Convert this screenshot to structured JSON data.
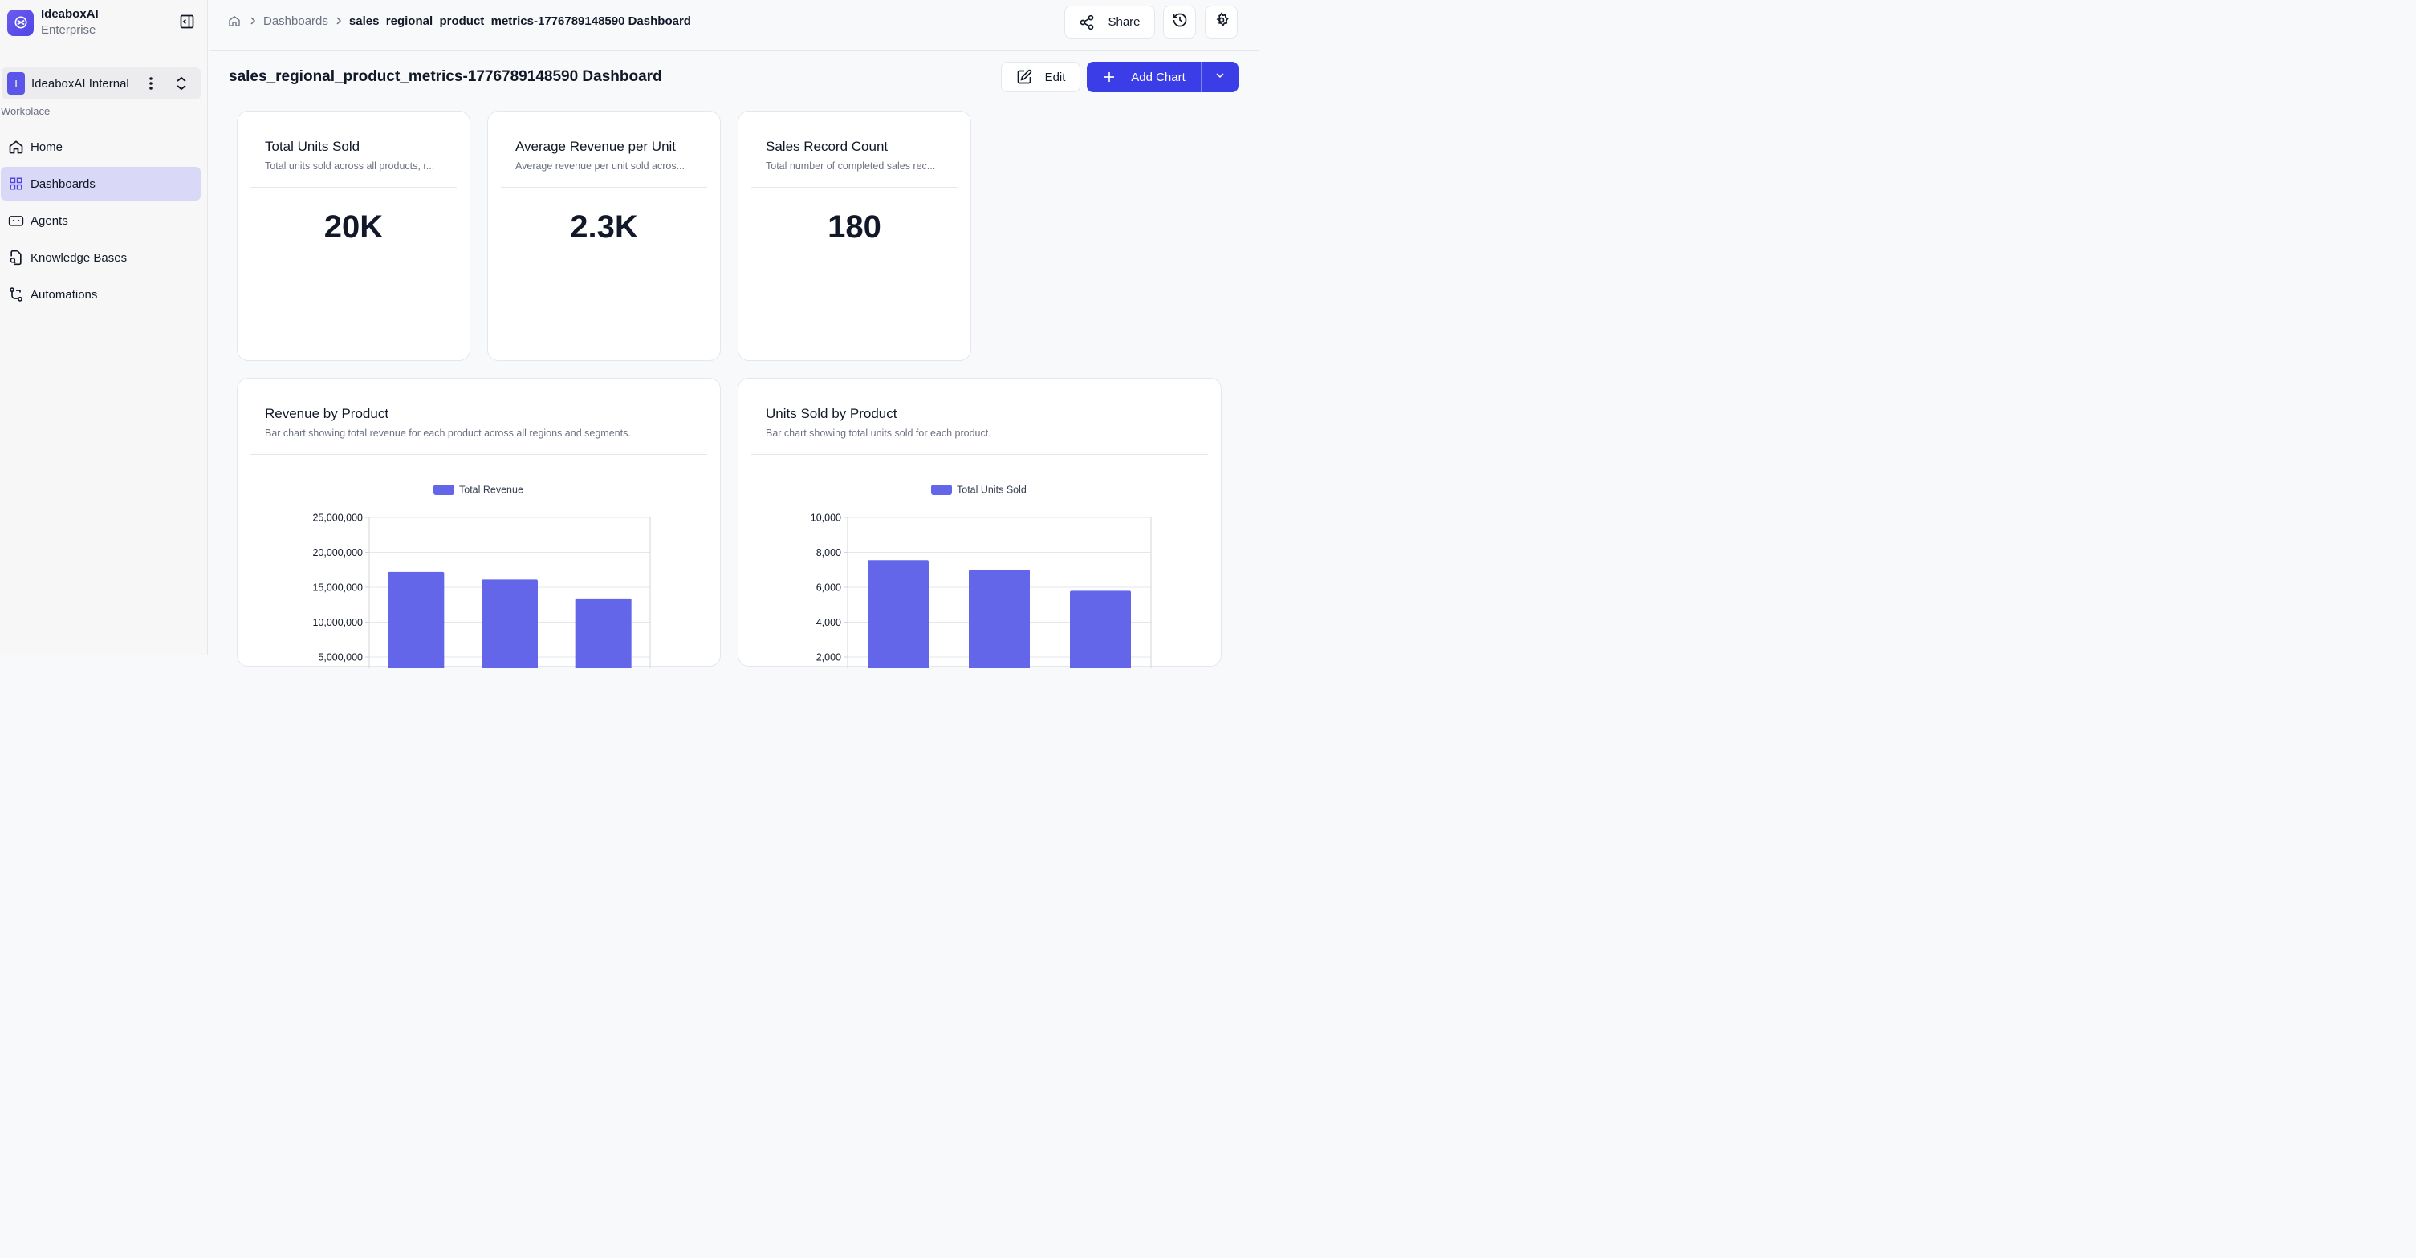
{
  "brand": {
    "name": "IdeaboxAI",
    "tier": "Enterprise"
  },
  "workspace": {
    "initial": "I",
    "name": "IdeaboxAI Internal"
  },
  "sidebar": {
    "section_label": "Workplace",
    "items": [
      {
        "label": "Home",
        "icon": "home-icon"
      },
      {
        "label": "Dashboards",
        "icon": "grid-icon",
        "active": true
      },
      {
        "label": "Agents",
        "icon": "bot-icon"
      },
      {
        "label": "Knowledge Bases",
        "icon": "file-search-icon"
      },
      {
        "label": "Automations",
        "icon": "workflow-icon"
      }
    ]
  },
  "breadcrumb": {
    "parent": "Dashboards",
    "current": "sales_regional_product_metrics-1776789148590 Dashboard"
  },
  "toolbar": {
    "share_label": "Share"
  },
  "page": {
    "title": "sales_regional_product_metrics-1776789148590 Dashboard",
    "edit_label": "Edit",
    "add_chart_label": "Add Chart"
  },
  "kpis": [
    {
      "title": "Total Units Sold",
      "description": "Total units sold across all products, r...",
      "value": "20K"
    },
    {
      "title": "Average Revenue per Unit",
      "description": "Average revenue per unit sold acros...",
      "value": "2.3K"
    },
    {
      "title": "Sales Record Count",
      "description": "Total number of completed sales rec...",
      "value": "180"
    }
  ],
  "charts": [
    {
      "title": "Revenue by Product",
      "description": "Bar chart showing total revenue for each product across all regions and segments."
    },
    {
      "title": "Units Sold by Product",
      "description": "Bar chart showing total units sold for each product."
    }
  ],
  "colors": {
    "accent": "#3b3ee6",
    "bar": "#6366e9",
    "active_nav": "#d9d9f7"
  },
  "chart_data": [
    {
      "type": "bar",
      "title": "Revenue by Product",
      "series": [
        {
          "name": "Total Revenue",
          "values": [
            17200000,
            16100000,
            13400000
          ]
        }
      ],
      "yticks": [
        "25,000,000",
        "20,000,000",
        "15,000,000",
        "10,000,000",
        "5,000,000"
      ],
      "ylim": [
        0,
        25000000
      ],
      "legend": "top-center",
      "grid": true
    },
    {
      "type": "bar",
      "title": "Units Sold by Product",
      "series": [
        {
          "name": "Total Units Sold",
          "values": [
            7550,
            7000,
            5800
          ]
        }
      ],
      "yticks": [
        "10,000",
        "8,000",
        "6,000",
        "4,000",
        "2,000"
      ],
      "ylim": [
        0,
        10000
      ],
      "legend": "top-center",
      "grid": true
    }
  ]
}
